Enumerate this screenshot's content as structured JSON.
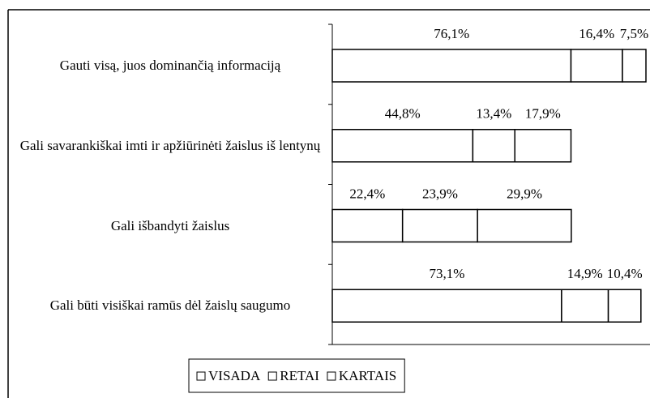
{
  "chart_data": {
    "type": "stacked_bar_horizontal",
    "categories": [
      "Gauti visą, juos dominančią informaciją",
      "Gali savarankiškai imti  ir apžiūrinėti žaislus iš lentynų",
      "Gali išbandyti žaislus",
      "Gali būti visiškai ramūs dėl žaislų saugumo"
    ],
    "series": [
      {
        "name": "VISADA",
        "color": "#ffffff",
        "values": [
          76.1,
          44.8,
          22.4,
          73.1
        ],
        "value_labels": [
          "76,1%",
          "44,8%",
          "22,4%",
          "73,1%"
        ]
      },
      {
        "name": "RETAI",
        "color": "#ffffff",
        "values": [
          16.4,
          13.4,
          23.9,
          14.9
        ],
        "value_labels": [
          "16,4%",
          "13,4%",
          "23,9%",
          "14,9%"
        ]
      },
      {
        "name": "KARTAIS",
        "color": "#ffffff",
        "values": [
          7.5,
          17.9,
          29.9,
          10.4
        ],
        "value_labels": [
          "7,5%",
          "17,9%",
          "29,9%",
          "10,4%"
        ]
      }
    ],
    "xlim": [
      0,
      100
    ],
    "legend": "bottom"
  }
}
